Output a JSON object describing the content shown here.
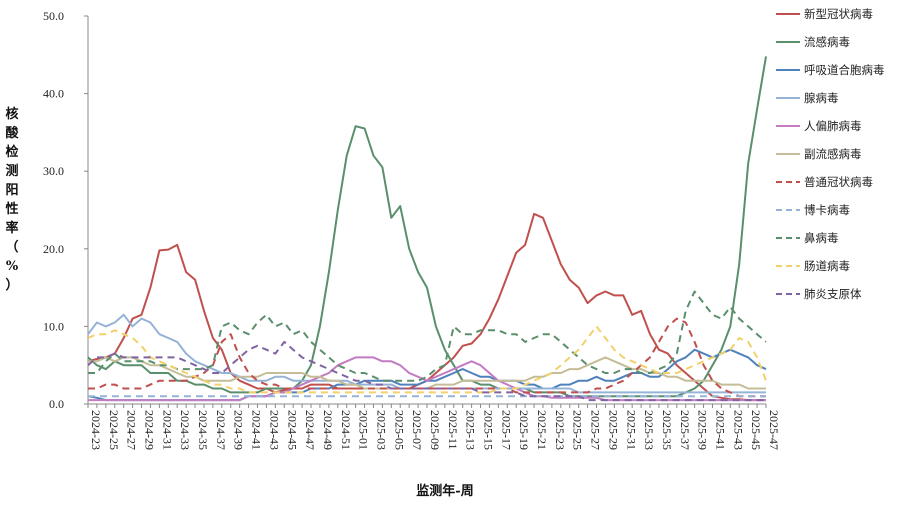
{
  "chart_data": {
    "type": "line",
    "title": "",
    "xlabel": "监测年-周",
    "ylabel": "核酸检测阳性率（%）",
    "ylim": [
      0,
      50
    ],
    "yticks": [
      "0.0",
      "10.0",
      "20.0",
      "30.0",
      "40.0",
      "50.0"
    ],
    "legend_position": "right",
    "grid": false,
    "x_ticks_labeled": [
      "2024-23",
      "2024-25",
      "2024-27",
      "2024-29",
      "2024-31",
      "2024-33",
      "2024-35",
      "2024-37",
      "2024-39",
      "2024-41",
      "2024-43",
      "2024-45",
      "2024-47",
      "2024-49",
      "2024-51",
      "2025-01",
      "2025-03",
      "2025-05",
      "2025-07",
      "2025-09",
      "2025-11",
      "2025-13",
      "2025-15",
      "2025-17",
      "2025-19",
      "2025-21",
      "2025-23",
      "2025-25",
      "2025-27",
      "2025-29",
      "2025-31",
      "2025-33",
      "2025-35",
      "2025-37",
      "2025-39",
      "2025-41",
      "2025-43",
      "2025-45",
      "2025-47"
    ],
    "x": [
      "2024-23",
      "2024-24",
      "2024-25",
      "2024-26",
      "2024-27",
      "2024-28",
      "2024-29",
      "2024-30",
      "2024-31",
      "2024-32",
      "2024-33",
      "2024-34",
      "2024-35",
      "2024-36",
      "2024-37",
      "2024-38",
      "2024-39",
      "2024-40",
      "2024-41",
      "2024-42",
      "2024-43",
      "2024-44",
      "2024-45",
      "2024-46",
      "2024-47",
      "2024-48",
      "2024-49",
      "2024-50",
      "2024-51",
      "2024-52",
      "2025-01",
      "2025-02",
      "2025-03",
      "2025-04",
      "2025-05",
      "2025-06",
      "2025-07",
      "2025-08",
      "2025-09",
      "2025-10",
      "2025-11",
      "2025-12",
      "2025-13",
      "2025-14",
      "2025-15",
      "2025-16",
      "2025-17",
      "2025-18",
      "2025-19",
      "2025-20",
      "2025-21",
      "2025-22",
      "2025-23",
      "2025-24",
      "2025-25",
      "2025-26",
      "2025-27",
      "2025-28",
      "2025-29",
      "2025-30",
      "2025-31",
      "2025-32",
      "2025-33",
      "2025-34",
      "2025-35",
      "2025-36",
      "2025-37",
      "2025-38",
      "2025-39",
      "2025-40",
      "2025-41",
      "2025-42",
      "2025-43",
      "2025-44",
      "2025-45",
      "2025-46",
      "2025-47"
    ],
    "series": [
      {
        "name": "新型冠状病毒",
        "color": "#C0504D",
        "dash": false,
        "values": [
          5.5,
          5.8,
          6.0,
          6.5,
          8.5,
          11.0,
          11.5,
          15.0,
          19.8,
          19.9,
          20.5,
          17.0,
          16.0,
          12.0,
          8.5,
          7.0,
          4.0,
          3.0,
          2.5,
          2.0,
          2.0,
          1.5,
          1.8,
          2.0,
          2.0,
          2.5,
          2.5,
          2.5,
          2.0,
          2.0,
          2.0,
          2.0,
          2.0,
          2.0,
          2.0,
          2.0,
          2.0,
          2.5,
          3.0,
          4.0,
          5.0,
          6.0,
          7.5,
          7.8,
          9.0,
          11.0,
          13.5,
          16.5,
          19.5,
          20.5,
          24.5,
          24.0,
          21.0,
          18.0,
          16.0,
          15.0,
          13.0,
          14.0,
          14.5,
          14.0,
          14.0,
          11.5,
          12.0,
          9.0,
          7.0,
          6.5,
          5.0,
          4.0,
          3.0,
          2.0,
          1.0,
          0.8,
          0.6,
          0.6,
          0.5,
          0.5,
          0.5
        ]
      },
      {
        "name": "流感病毒",
        "color": "#5A8F6B",
        "dash": false,
        "values": [
          6.0,
          5.0,
          4.5,
          5.5,
          5.0,
          5.0,
          5.0,
          4.0,
          4.0,
          4.0,
          3.0,
          3.0,
          2.5,
          2.5,
          2.0,
          2.0,
          1.5,
          1.5,
          1.5,
          1.5,
          2.0,
          2.0,
          2.0,
          2.0,
          3.0,
          5.0,
          10.0,
          17.0,
          25.0,
          32.0,
          35.8,
          35.5,
          32.0,
          30.5,
          24.0,
          25.5,
          20.0,
          17.0,
          15.0,
          10.0,
          7.0,
          5.0,
          3.0,
          3.0,
          2.5,
          2.5,
          2.0,
          2.0,
          2.0,
          2.0,
          1.5,
          1.5,
          1.5,
          1.5,
          1.0,
          1.0,
          1.0,
          1.0,
          1.0,
          1.0,
          1.0,
          1.0,
          1.0,
          1.0,
          1.0,
          1.0,
          1.0,
          1.5,
          2.0,
          3.0,
          5.0,
          7.0,
          10.0,
          18.0,
          31.0,
          38.0,
          44.8
        ]
      },
      {
        "name": "呼吸道合胞病毒",
        "color": "#4F81BD",
        "dash": false,
        "values": [
          1.0,
          0.8,
          0.5,
          0.5,
          0.5,
          0.5,
          0.5,
          0.5,
          0.5,
          0.5,
          0.5,
          0.5,
          0.5,
          0.5,
          0.5,
          0.5,
          0.5,
          0.5,
          1.0,
          1.0,
          1.0,
          1.5,
          1.5,
          1.5,
          1.5,
          2.0,
          2.0,
          2.0,
          2.5,
          2.5,
          2.5,
          3.0,
          3.0,
          3.0,
          3.0,
          2.5,
          2.5,
          2.5,
          3.0,
          3.0,
          3.5,
          4.0,
          4.5,
          4.0,
          3.5,
          3.5,
          3.0,
          3.0,
          3.0,
          2.5,
          2.5,
          2.0,
          2.0,
          2.5,
          2.5,
          3.0,
          3.0,
          3.5,
          3.0,
          3.0,
          3.5,
          4.0,
          4.0,
          3.5,
          3.5,
          4.5,
          5.5,
          6.0,
          7.0,
          6.5,
          6.0,
          6.5,
          7.0,
          6.5,
          6.0,
          5.0,
          4.5
        ]
      },
      {
        "name": "腺病毒",
        "color": "#95B3D7",
        "dash": false,
        "values": [
          9.0,
          10.5,
          10.0,
          10.5,
          11.5,
          10.0,
          11.0,
          10.5,
          9.0,
          8.5,
          8.0,
          6.5,
          5.5,
          5.0,
          4.5,
          4.0,
          4.0,
          3.5,
          3.0,
          3.0,
          3.0,
          3.5,
          3.5,
          3.0,
          3.0,
          3.0,
          3.0,
          3.0,
          3.0,
          3.0,
          2.5,
          2.5,
          2.5,
          2.5,
          2.5,
          2.0,
          2.0,
          2.0,
          2.0,
          2.0,
          2.0,
          2.0,
          2.0,
          2.0,
          2.0,
          2.0,
          2.0,
          2.0,
          2.0,
          2.0,
          2.0,
          2.0,
          2.0,
          2.0,
          2.0,
          1.5,
          1.5,
          1.5,
          1.5,
          1.5,
          1.5,
          1.5,
          1.5,
          1.5,
          1.5,
          1.5,
          1.5,
          1.5,
          1.5,
          1.5,
          1.5,
          1.5,
          1.5,
          1.5,
          1.5,
          1.5,
          1.5
        ]
      },
      {
        "name": "人偏肺病毒",
        "color": "#C37BC2",
        "dash": false,
        "values": [
          0.5,
          0.5,
          0.5,
          0.5,
          0.5,
          0.5,
          0.5,
          0.5,
          0.5,
          0.5,
          0.5,
          0.5,
          0.5,
          0.5,
          0.5,
          0.5,
          0.5,
          0.5,
          1.0,
          1.0,
          1.0,
          1.5,
          1.5,
          2.0,
          2.5,
          3.0,
          3.5,
          4.0,
          5.0,
          5.5,
          6.0,
          6.0,
          6.0,
          5.5,
          5.5,
          5.0,
          4.0,
          3.5,
          3.0,
          3.5,
          4.0,
          4.5,
          5.0,
          5.5,
          5.0,
          4.0,
          3.0,
          2.5,
          2.0,
          1.5,
          1.0,
          1.0,
          0.8,
          0.8,
          0.8,
          0.8,
          0.8,
          0.8,
          0.5,
          0.5,
          0.5,
          0.5,
          0.5,
          0.5,
          0.5,
          0.5,
          0.5,
          0.5,
          0.5,
          0.5,
          0.5,
          0.5,
          0.5,
          0.5,
          0.5,
          0.5,
          0.5
        ]
      },
      {
        "name": "副流感病毒",
        "color": "#C4BD97",
        "dash": false,
        "values": [
          5.5,
          5.5,
          6.0,
          5.5,
          6.0,
          6.0,
          5.5,
          5.0,
          5.0,
          4.5,
          4.0,
          3.5,
          3.5,
          3.0,
          3.0,
          3.0,
          3.0,
          3.5,
          3.5,
          3.5,
          4.0,
          4.0,
          4.0,
          4.0,
          4.0,
          3.5,
          3.5,
          3.0,
          3.0,
          2.5,
          2.5,
          2.0,
          2.0,
          2.0,
          2.0,
          2.0,
          2.0,
          2.0,
          2.0,
          2.5,
          2.5,
          2.5,
          3.0,
          3.0,
          3.0,
          3.0,
          3.0,
          3.0,
          3.0,
          3.0,
          3.5,
          3.5,
          4.0,
          4.0,
          4.5,
          4.5,
          5.0,
          5.5,
          6.0,
          5.5,
          5.0,
          4.5,
          4.5,
          4.0,
          4.0,
          3.5,
          3.5,
          3.0,
          3.0,
          3.0,
          3.0,
          2.5,
          2.5,
          2.5,
          2.0,
          2.0,
          2.0
        ]
      },
      {
        "name": "普通冠状病毒",
        "color": "#C0504D",
        "dash": true,
        "values": [
          2.0,
          2.0,
          2.5,
          2.5,
          2.0,
          2.0,
          2.0,
          2.5,
          3.0,
          3.0,
          3.0,
          3.0,
          3.5,
          4.0,
          5.0,
          8.0,
          9.0,
          6.0,
          4.0,
          3.0,
          2.5,
          2.5,
          2.0,
          2.0,
          2.0,
          2.0,
          2.0,
          2.0,
          2.0,
          2.0,
          2.0,
          2.0,
          2.0,
          2.0,
          2.0,
          2.0,
          2.0,
          2.0,
          2.0,
          2.0,
          2.0,
          2.0,
          2.0,
          2.0,
          2.0,
          2.0,
          2.0,
          2.0,
          1.5,
          1.5,
          1.5,
          1.5,
          1.5,
          1.5,
          1.5,
          1.5,
          1.5,
          2.0,
          2.0,
          2.5,
          3.0,
          4.0,
          5.0,
          6.0,
          8.0,
          10.0,
          11.0,
          10.5,
          8.0,
          5.0,
          3.0,
          2.0,
          1.5,
          1.0,
          1.0,
          1.0,
          1.0
        ]
      },
      {
        "name": "博卡病毒",
        "color": "#95B3D7",
        "dash": true,
        "values": [
          1.0,
          1.0,
          1.0,
          1.0,
          1.0,
          1.0,
          1.0,
          1.0,
          1.0,
          1.0,
          1.0,
          1.0,
          1.0,
          1.0,
          1.0,
          1.0,
          1.0,
          1.0,
          1.0,
          1.0,
          1.0,
          1.0,
          1.0,
          1.0,
          1.0,
          1.0,
          1.0,
          1.0,
          1.0,
          1.0,
          1.0,
          1.0,
          1.0,
          1.0,
          1.0,
          1.0,
          1.0,
          1.0,
          1.0,
          1.0,
          1.0,
          1.0,
          1.0,
          1.0,
          1.0,
          1.0,
          1.0,
          1.0,
          1.0,
          1.0,
          1.0,
          1.0,
          1.0,
          1.0,
          1.0,
          1.0,
          1.0,
          1.0,
          1.0,
          1.0,
          1.0,
          1.0,
          1.0,
          1.0,
          1.0,
          1.0,
          1.0,
          1.0,
          1.0,
          1.0,
          1.0,
          1.0,
          1.0,
          1.0,
          1.0,
          1.0,
          1.0
        ]
      },
      {
        "name": "鼻病毒",
        "color": "#5A8F6B",
        "dash": true,
        "values": [
          4.0,
          4.0,
          5.5,
          6.5,
          5.5,
          5.5,
          5.5,
          5.5,
          5.0,
          5.0,
          4.5,
          4.5,
          4.5,
          4.5,
          5.0,
          10.0,
          10.5,
          9.5,
          9.0,
          10.5,
          11.5,
          10.0,
          10.5,
          9.0,
          9.5,
          8.0,
          7.0,
          6.0,
          5.0,
          4.5,
          4.0,
          4.0,
          3.5,
          3.0,
          3.0,
          3.0,
          3.0,
          3.0,
          3.5,
          4.5,
          5.0,
          10.0,
          9.0,
          9.0,
          9.5,
          9.5,
          9.5,
          9.0,
          9.0,
          8.0,
          8.5,
          9.0,
          9.0,
          8.0,
          7.0,
          6.0,
          5.0,
          4.5,
          4.0,
          4.0,
          4.5,
          4.5,
          4.0,
          4.0,
          4.5,
          5.0,
          6.5,
          12.0,
          14.5,
          13.0,
          11.5,
          11.0,
          12.5,
          11.0,
          10.0,
          9.0,
          8.0
        ]
      },
      {
        "name": "肠道病毒",
        "color": "#F2D16B",
        "dash": true,
        "values": [
          8.5,
          9.0,
          9.0,
          9.5,
          9.0,
          8.5,
          7.5,
          6.0,
          5.5,
          5.0,
          4.5,
          4.0,
          3.5,
          3.0,
          2.5,
          2.5,
          2.0,
          2.0,
          1.5,
          1.5,
          1.5,
          1.5,
          1.5,
          1.5,
          1.5,
          1.5,
          1.5,
          1.5,
          1.5,
          1.5,
          1.5,
          1.5,
          1.5,
          1.5,
          1.5,
          1.5,
          1.5,
          1.5,
          1.5,
          1.5,
          1.5,
          1.5,
          1.5,
          1.5,
          1.5,
          1.5,
          2.0,
          2.0,
          2.0,
          2.5,
          3.0,
          3.5,
          4.0,
          5.0,
          6.0,
          7.0,
          8.5,
          10.0,
          8.5,
          7.0,
          6.0,
          5.5,
          5.0,
          4.5,
          4.0,
          4.0,
          4.0,
          4.5,
          5.0,
          5.5,
          6.0,
          6.5,
          7.0,
          8.5,
          8.0,
          6.0,
          3.0
        ]
      },
      {
        "name": "肺炎支原体",
        "color": "#8064A2",
        "dash": true,
        "values": [
          5.0,
          6.0,
          6.0,
          6.5,
          6.0,
          6.0,
          6.0,
          6.0,
          6.0,
          6.0,
          6.0,
          5.5,
          5.0,
          4.5,
          4.0,
          4.0,
          5.0,
          6.0,
          7.0,
          7.5,
          7.0,
          6.5,
          8.0,
          7.0,
          6.0,
          5.5,
          5.0,
          4.5,
          4.0,
          3.5,
          3.0,
          3.0,
          2.5,
          2.5,
          2.0,
          2.0,
          2.0,
          2.0,
          2.0,
          2.0,
          2.0,
          2.0,
          2.0,
          2.0,
          1.5,
          1.5,
          1.5,
          1.5,
          1.5,
          1.0,
          1.0,
          1.0,
          1.0,
          1.0,
          1.0,
          1.0,
          0.5,
          0.5,
          0.5,
          0.5,
          0.5,
          0.5,
          0.5,
          0.5,
          0.5,
          0.5,
          0.5,
          0.5,
          0.5,
          0.5,
          0.5,
          0.5,
          0.5,
          0.5,
          0.5,
          0.5,
          0.5
        ]
      }
    ]
  }
}
